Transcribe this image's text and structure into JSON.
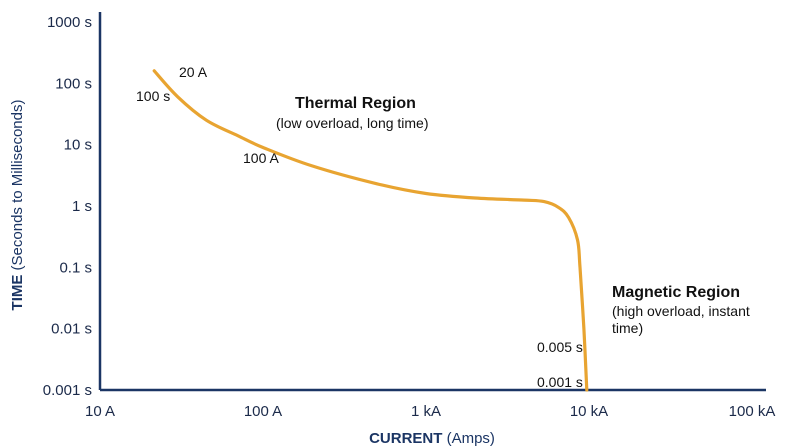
{
  "chart_data": {
    "type": "line",
    "x_scale": "log",
    "y_scale": "log",
    "xlim": [
      10,
      100000
    ],
    "ylim": [
      0.001,
      1000
    ],
    "grid": false,
    "xlabel_bold": "CURRENT",
    "xlabel_rest": " (Amps)",
    "ylabel_bold": "TIME",
    "ylabel_rest": " (Seconds to Milliseconds)",
    "x_ticks": [
      {
        "value": 10,
        "label": "10 A"
      },
      {
        "value": 100,
        "label": "100 A"
      },
      {
        "value": 1000,
        "label": "1 kA"
      },
      {
        "value": 10000,
        "label": "10 kA"
      },
      {
        "value": 100000,
        "label": "100 kA"
      }
    ],
    "y_ticks": [
      {
        "value": 1000,
        "label": "1000 s"
      },
      {
        "value": 100,
        "label": "100 s"
      },
      {
        "value": 10,
        "label": "10 s"
      },
      {
        "value": 1,
        "label": "1 s"
      },
      {
        "value": 0.1,
        "label": "0.1 s"
      },
      {
        "value": 0.01,
        "label": "0.01 s"
      },
      {
        "value": 0.001,
        "label": "0.001 s"
      }
    ],
    "series": [
      {
        "color": "#e8a431",
        "points": [
          {
            "x": 21.5,
            "y": 160
          },
          {
            "x": 30,
            "y": 60
          },
          {
            "x": 45,
            "y": 25
          },
          {
            "x": 70,
            "y": 14
          },
          {
            "x": 100,
            "y": 9
          },
          {
            "x": 200,
            "y": 4.5
          },
          {
            "x": 500,
            "y": 2.3
          },
          {
            "x": 1000,
            "y": 1.6
          },
          {
            "x": 2000,
            "y": 1.35
          },
          {
            "x": 4000,
            "y": 1.25
          },
          {
            "x": 5300,
            "y": 1.18
          },
          {
            "x": 6500,
            "y": 0.95
          },
          {
            "x": 7500,
            "y": 0.65
          },
          {
            "x": 8500,
            "y": 0.28
          },
          {
            "x": 8800,
            "y": 0.1
          },
          {
            "x": 9300,
            "y": 0.01
          },
          {
            "x": 9700,
            "y": 0.001
          }
        ]
      }
    ],
    "annotations": [
      {
        "key": "a20",
        "text": "20 A"
      },
      {
        "key": "s100",
        "text": "100 s"
      },
      {
        "key": "a100",
        "text": "100 A"
      },
      {
        "key": "s0005",
        "text": "0.005 s"
      },
      {
        "key": "s0001",
        "text": "0.001 s"
      }
    ],
    "regions": {
      "thermal_title": "Thermal Region",
      "thermal_sub": "(low overload, long time)",
      "magnetic_title": "Magnetic Region",
      "magnetic_sub_1": "(high overload, instant",
      "magnetic_sub_2": "time)"
    }
  }
}
